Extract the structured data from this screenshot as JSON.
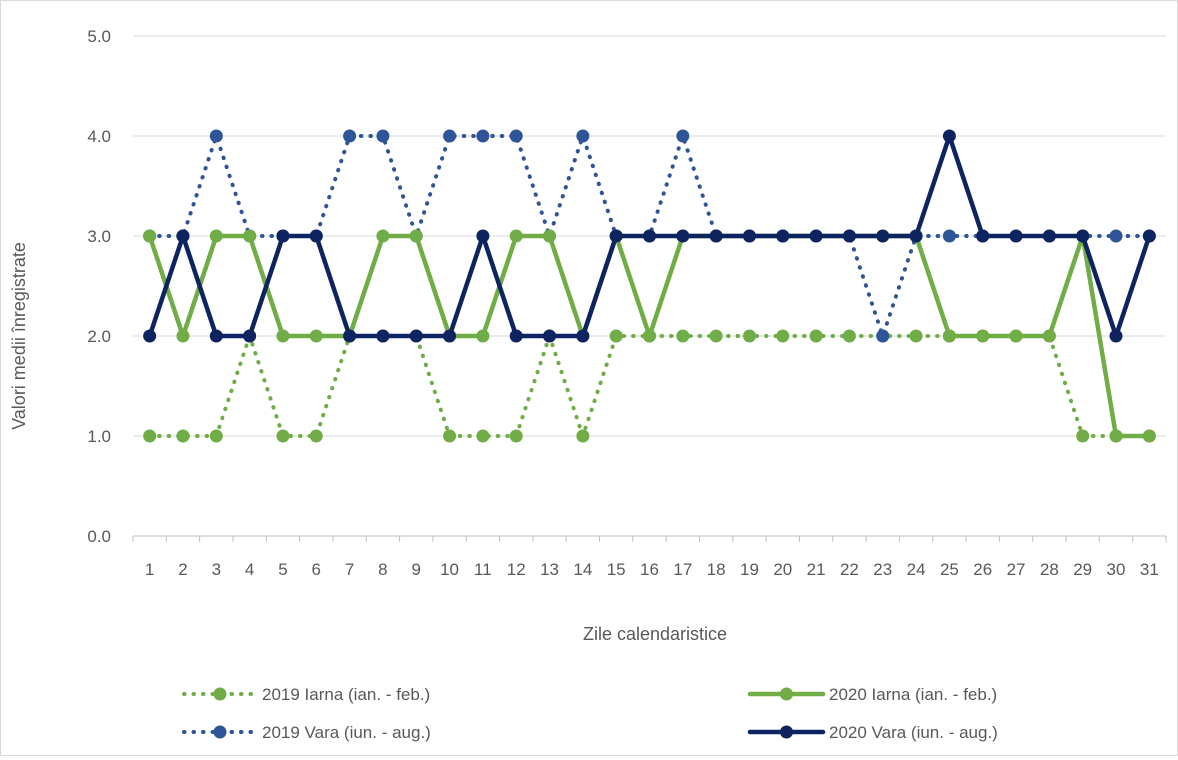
{
  "chart_data": {
    "type": "line",
    "xlabel": "Zile calendaristice",
    "ylabel": "Valori medii înregistrate",
    "ylim": [
      0,
      5
    ],
    "yticks": [
      "0.0",
      "1.0",
      "2.0",
      "3.0",
      "4.0",
      "5.0"
    ],
    "categories": [
      "1",
      "2",
      "3",
      "4",
      "5",
      "6",
      "7",
      "8",
      "9",
      "10",
      "11",
      "12",
      "13",
      "14",
      "15",
      "16",
      "17",
      "18",
      "19",
      "20",
      "21",
      "22",
      "23",
      "24",
      "25",
      "26",
      "27",
      "28",
      "29",
      "30",
      "31"
    ],
    "grid": true,
    "legend_position": "bottom",
    "series": [
      {
        "name": "2019 Iarna (ian. - feb.)",
        "color": "#70ad47",
        "style": "dotted",
        "values": [
          1,
          1,
          1,
          2,
          1,
          1,
          2,
          2,
          2,
          1,
          1,
          1,
          2,
          1,
          2,
          2,
          2,
          2,
          2,
          2,
          2,
          2,
          2,
          2,
          2,
          2,
          2,
          2,
          1,
          1,
          1
        ]
      },
      {
        "name": "2020 Iarna (ian. - feb.)",
        "color": "#70ad47",
        "style": "solid",
        "values": [
          3,
          2,
          3,
          3,
          2,
          2,
          2,
          3,
          3,
          2,
          2,
          3,
          3,
          2,
          3,
          2,
          3,
          3,
          3,
          3,
          3,
          3,
          3,
          3,
          2,
          2,
          2,
          2,
          3,
          1,
          1
        ]
      },
      {
        "name": "2019 Vara (iun. - aug.)",
        "color": "#2e5597",
        "style": "dotted",
        "values": [
          3,
          3,
          4,
          3,
          3,
          3,
          4,
          4,
          3,
          4,
          4,
          4,
          3,
          4,
          3,
          3,
          4,
          3,
          3,
          3,
          3,
          3,
          2,
          3,
          3,
          3,
          3,
          3,
          3,
          3,
          3
        ]
      },
      {
        "name": "2020 Vara (iun. - aug.)",
        "color": "#0d2461",
        "style": "solid",
        "values": [
          2,
          3,
          2,
          2,
          3,
          3,
          2,
          2,
          2,
          2,
          3,
          2,
          2,
          2,
          3,
          3,
          3,
          3,
          3,
          3,
          3,
          3,
          3,
          3,
          4,
          3,
          3,
          3,
          3,
          2,
          3
        ]
      }
    ]
  }
}
